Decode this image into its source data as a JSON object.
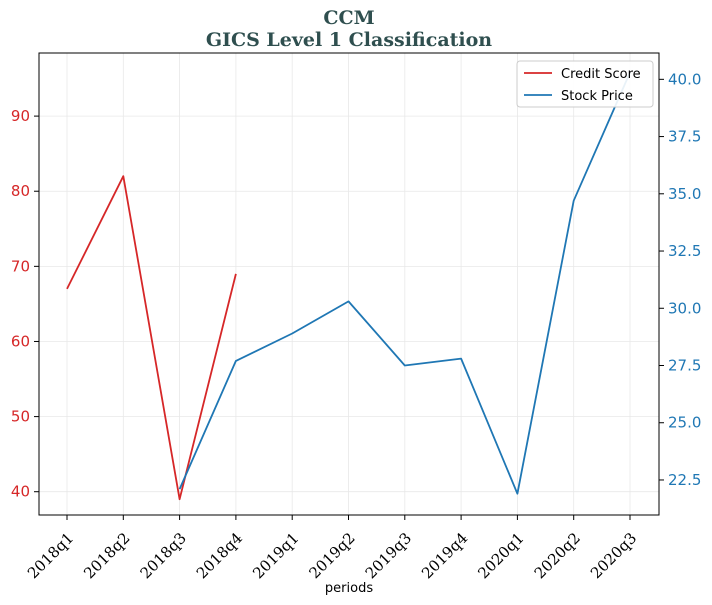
{
  "chart_data": {
    "type": "line",
    "title": "CCM",
    "subtitle": "GICS Level 1 Classification",
    "xlabel": "periods",
    "categories": [
      "2018q1",
      "2018q2",
      "2018q3",
      "2018q4",
      "2019q1",
      "2019q2",
      "2019q3",
      "2019q4",
      "2020q1",
      "2020q2",
      "2020q3"
    ],
    "series": [
      {
        "name": "Credit Score",
        "axis": "left",
        "color": "#d62728",
        "values": [
          67,
          82,
          39,
          69,
          null,
          null,
          null,
          null,
          null,
          null,
          null
        ]
      },
      {
        "name": "Stock Price",
        "axis": "right",
        "color": "#1f77b4",
        "values": [
          null,
          null,
          22.1,
          27.7,
          28.9,
          30.3,
          27.5,
          27.8,
          21.9,
          34.7,
          40.3
        ]
      }
    ],
    "y_left": {
      "ylim": [
        36.9,
        98.4
      ],
      "ticks": [
        40,
        50,
        60,
        70,
        80,
        90
      ]
    },
    "y_right": {
      "ylim": [
        20.97,
        41.15
      ],
      "ticks": [
        22.5,
        25.0,
        27.5,
        30.0,
        32.5,
        35.0,
        37.5,
        40.0
      ]
    },
    "grid": true,
    "legend_position": "top-right"
  }
}
